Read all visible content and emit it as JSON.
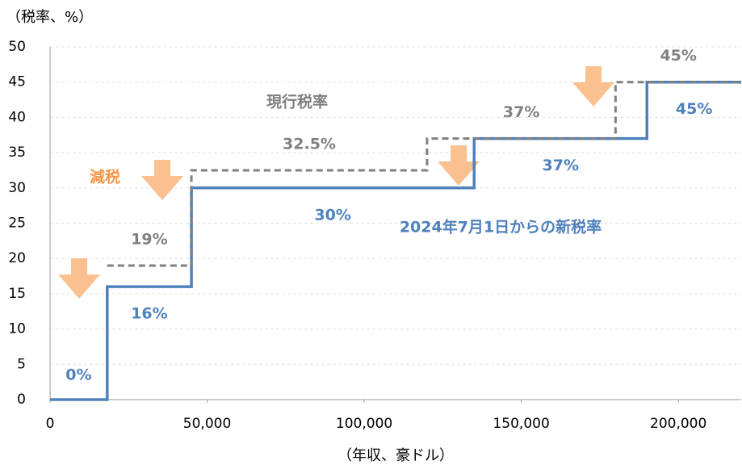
{
  "chart_data": {
    "type": "step",
    "y_label": "（税率、%）",
    "x_label": "（年収、豪ドル）",
    "annotation": "減税",
    "xlim": [
      0,
      220000
    ],
    "xticks": [
      0,
      {
        "value": 50000,
        "label": "50,000"
      },
      {
        "value": 100000,
        "label": "100,000"
      },
      {
        "value": 150000,
        "label": "150,000"
      },
      {
        "value": 200000,
        "label": "200,000"
      }
    ],
    "ylim": [
      0,
      50
    ],
    "yticks": [
      0,
      5,
      10,
      15,
      20,
      25,
      30,
      35,
      40,
      45,
      50
    ],
    "grid": true,
    "series": [
      {
        "name": "2024年7月1日からの新税率",
        "color": "#4f81bd",
        "dashed": false,
        "x": [
          0,
          18200,
          45000,
          135000,
          190000
        ],
        "values": [
          0,
          16,
          30,
          37,
          45
        ],
        "value_labels": [
          "0%",
          "16%",
          "30%",
          "37%",
          "45%"
        ]
      },
      {
        "name": "現行税率",
        "color": "#808080",
        "dashed": true,
        "x": [
          18200,
          45000,
          120000,
          180000
        ],
        "values": [
          19,
          32.5,
          37,
          45
        ],
        "value_labels": [
          "19%",
          "32.5%",
          "37%",
          "45%"
        ]
      }
    ]
  }
}
